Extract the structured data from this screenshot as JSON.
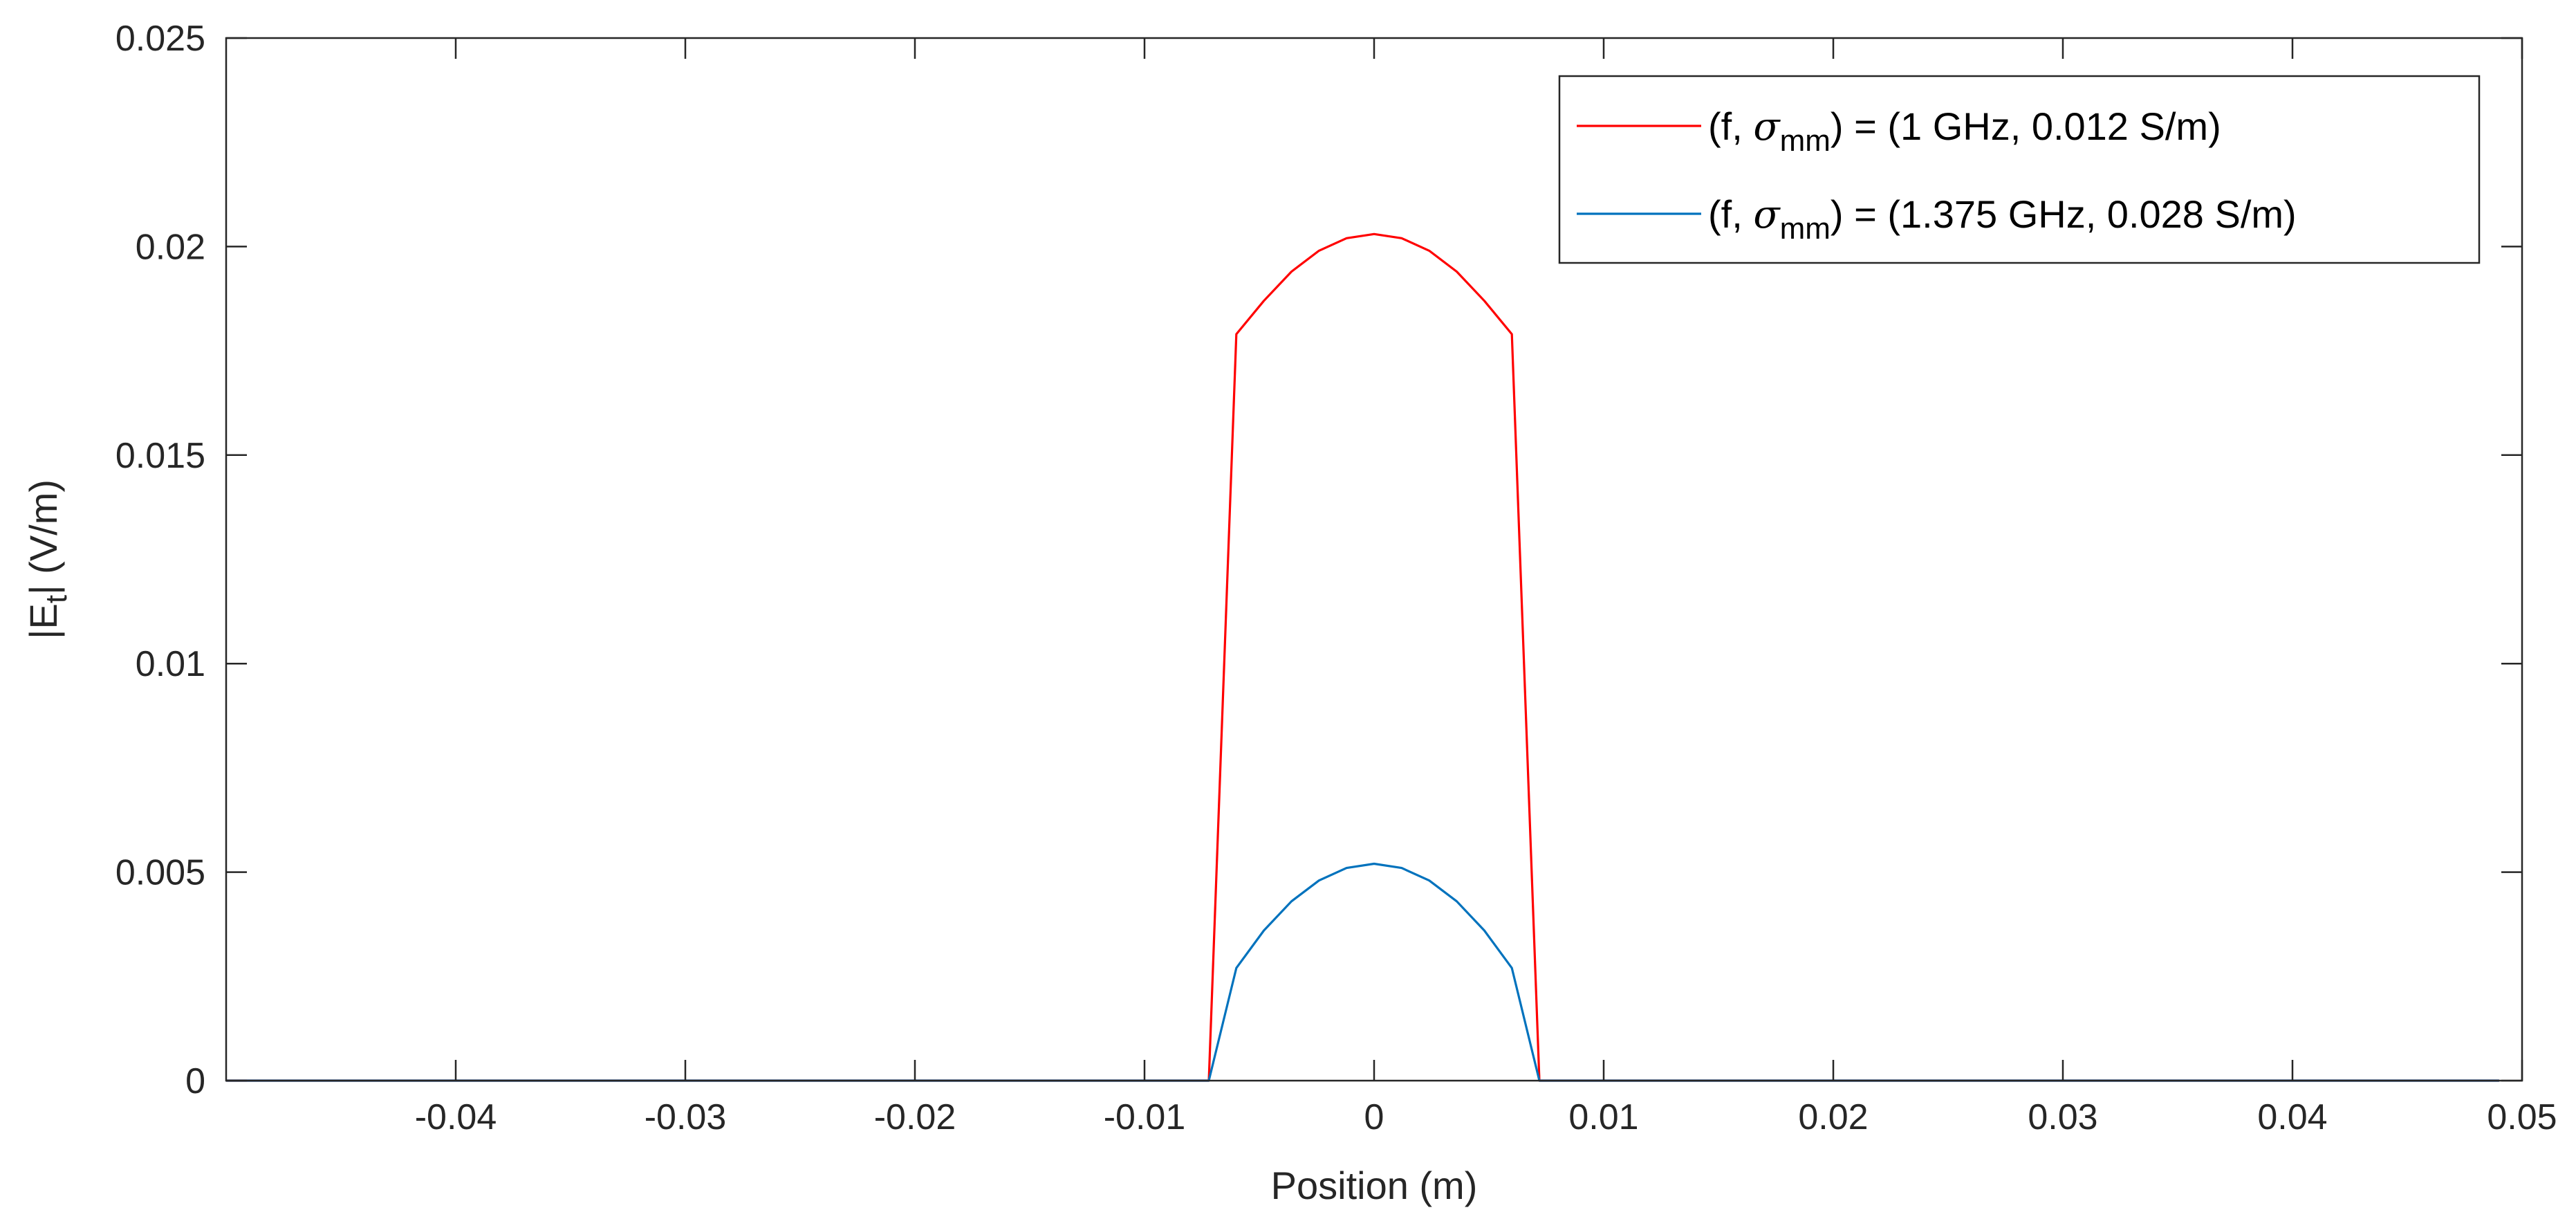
{
  "chart_data": {
    "type": "line",
    "title": "",
    "xlabel": "Position (m)",
    "ylabel": {
      "prefix": "|E",
      "subscript": "t",
      "suffix": "|  (V/m)"
    },
    "xlim": [
      -0.05,
      0.05
    ],
    "ylim": [
      0,
      0.025
    ],
    "xticks": [
      -0.04,
      -0.03,
      -0.02,
      -0.01,
      0,
      0.01,
      0.02,
      0.03,
      0.04,
      0.05
    ],
    "xtick_labels": [
      "-0.04",
      "-0.03",
      "-0.02",
      "-0.01",
      "0",
      "0.01",
      "0.02",
      "0.03",
      "0.04",
      "0.05"
    ],
    "yticks": [
      0,
      0.005,
      0.01,
      0.015,
      0.02,
      0.025
    ],
    "ytick_labels": [
      "0",
      "0.005",
      "0.01",
      "0.015",
      "0.02",
      "0.025"
    ],
    "grid": false,
    "legend_position": "top-right",
    "series": [
      {
        "name": "(f, σmm) = (1 GHz, 0.012 S/m)",
        "legend": {
          "prefix": "(f, ",
          "symbol": "σ",
          "subscript": "mm",
          "suffix": ") = (1 GHz, 0.012 S/m)"
        },
        "color": "#ff0000",
        "x": [
          -0.05,
          -0.0072,
          -0.006,
          -0.0048,
          -0.0036,
          -0.0024,
          -0.0012,
          0,
          0.0012,
          0.0024,
          0.0036,
          0.0048,
          0.006,
          0.0072,
          0.049
        ],
        "y": [
          0,
          0,
          0.0179,
          0.0187,
          0.0194,
          0.0199,
          0.0202,
          0.0203,
          0.0202,
          0.0199,
          0.0194,
          0.0187,
          0.0179,
          0,
          0
        ]
      },
      {
        "name": "(f, σmm) = (1.375 GHz, 0.028 S/m)",
        "legend": {
          "prefix": "(f, ",
          "symbol": "σ",
          "subscript": "mm",
          "suffix": ") = (1.375 GHz, 0.028 S/m)"
        },
        "color": "#0072bd",
        "x": [
          -0.05,
          -0.0072,
          -0.006,
          -0.0048,
          -0.0036,
          -0.0024,
          -0.0012,
          0,
          0.0012,
          0.0024,
          0.0036,
          0.0048,
          0.006,
          0.0072,
          0.049
        ],
        "y": [
          0,
          0,
          0.0027,
          0.0036,
          0.0043,
          0.0048,
          0.0051,
          0.0052,
          0.0051,
          0.0048,
          0.0043,
          0.0036,
          0.0027,
          0,
          0
        ]
      }
    ]
  },
  "colors": {
    "axis": "#262626",
    "background": "#ffffff"
  }
}
